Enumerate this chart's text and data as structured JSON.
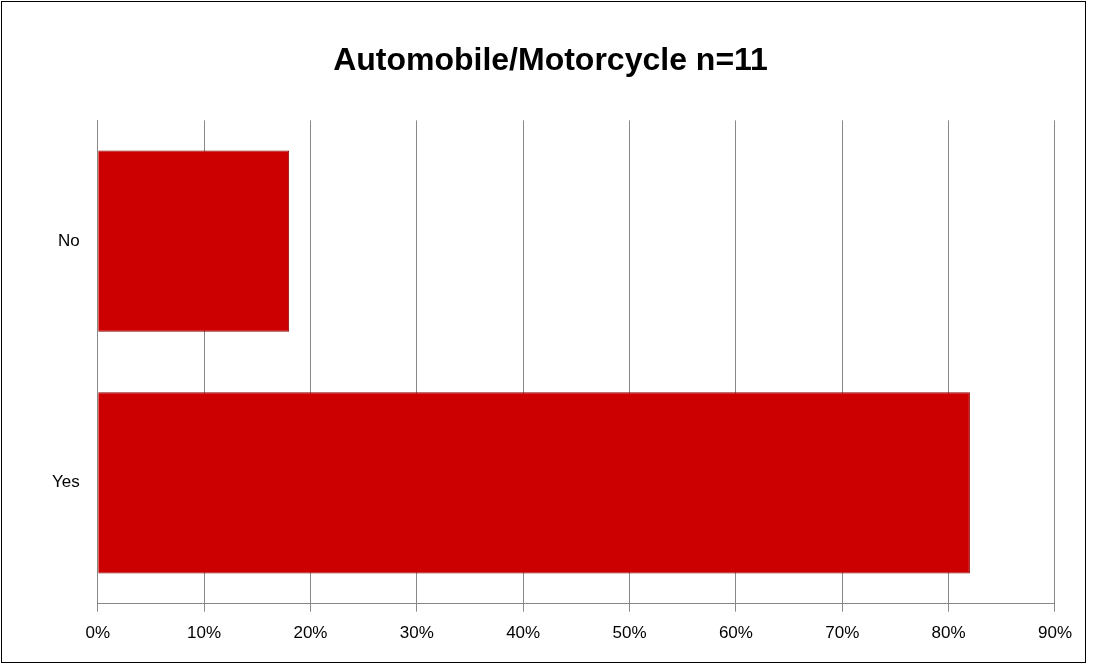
{
  "chart_data": {
    "type": "bar",
    "orientation": "horizontal",
    "title": "Automobile/Motorcycle n=11",
    "categories": [
      "No",
      "Yes"
    ],
    "values": [
      18,
      82
    ],
    "color": "#cc0000",
    "xlim": [
      0,
      90
    ],
    "xticks": [
      {
        "value": 0,
        "label": "0%"
      },
      {
        "value": 10,
        "label": "10%"
      },
      {
        "value": 20,
        "label": "20%"
      },
      {
        "value": 30,
        "label": "30%"
      },
      {
        "value": 40,
        "label": "40%"
      },
      {
        "value": 50,
        "label": "50%"
      },
      {
        "value": 60,
        "label": "60%"
      },
      {
        "value": 70,
        "label": "70%"
      },
      {
        "value": 80,
        "label": "80%"
      },
      {
        "value": 90,
        "label": "90%"
      }
    ],
    "grid": "x"
  }
}
